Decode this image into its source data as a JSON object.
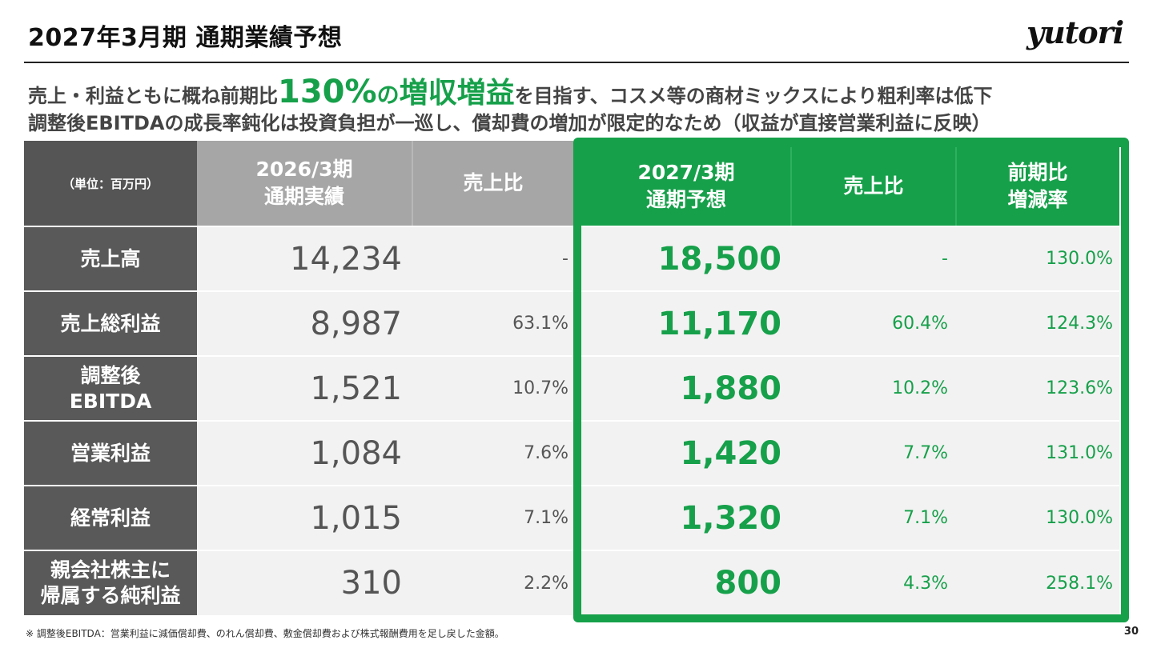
{
  "header": {
    "title": "2027年3月期 通期業績予想",
    "logo_text": "yutori"
  },
  "headline": {
    "line1_prefix": "売上・利益ともに概ね前期比",
    "line1_highlight_pct": "130%",
    "line1_highlight_no": "の",
    "line1_highlight_word": "増収増益",
    "line1_suffix": "を目指す、コスメ等の商材ミックスにより粗利率は低下",
    "line2": "調整後EBITDAの成長率鈍化は投資負担が一巡し、償却費の増加が限定的なため（収益が直接営業利益に反映）"
  },
  "table": {
    "unit": "（単位：百万円）",
    "col_actual_l1": "2026/3期",
    "col_actual_l2": "通期実績",
    "col_ratio": "売上比",
    "col_forecast_l1": "2027/3期",
    "col_forecast_l2": "通期予想",
    "col_ratio2": "売上比",
    "col_yoy_l1": "前期比",
    "col_yoy_l2": "増減率",
    "rows": [
      {
        "l1": "売上高",
        "l2": "",
        "actual": "14,234",
        "ratio": "-",
        "forecast": "18,500",
        "ratio2": "-",
        "yoy": "130.0%"
      },
      {
        "l1": "売上総利益",
        "l2": "",
        "actual": "8,987",
        "ratio": "63.1%",
        "forecast": "11,170",
        "ratio2": "60.4%",
        "yoy": "124.3%"
      },
      {
        "l1": "調整後",
        "l2": "EBITDA",
        "actual": "1,521",
        "ratio": "10.7%",
        "forecast": "1,880",
        "ratio2": "10.2%",
        "yoy": "123.6%"
      },
      {
        "l1": "営業利益",
        "l2": "",
        "actual": "1,084",
        "ratio": "7.6%",
        "forecast": "1,420",
        "ratio2": "7.7%",
        "yoy": "131.0%"
      },
      {
        "l1": "経常利益",
        "l2": "",
        "actual": "1,015",
        "ratio": "7.1%",
        "forecast": "1,320",
        "ratio2": "7.1%",
        "yoy": "130.0%"
      },
      {
        "l1": "親会社株主に",
        "l2": "帰属する純利益",
        "actual": "310",
        "ratio": "2.2%",
        "forecast": "800",
        "ratio2": "4.3%",
        "yoy": "258.1%"
      }
    ]
  },
  "footer": {
    "note": "※ 調整後EBITDA：営業利益に減価償却費、のれん償却費、敷金償却費および株式報酬費用を足し戻した金額。",
    "page": "30"
  },
  "colors": {
    "accent_green": "#16a04a",
    "row_header_gray": "#595959",
    "column_header_gray": "#a6a6a6",
    "cell_bg": "#f2f2f2"
  }
}
